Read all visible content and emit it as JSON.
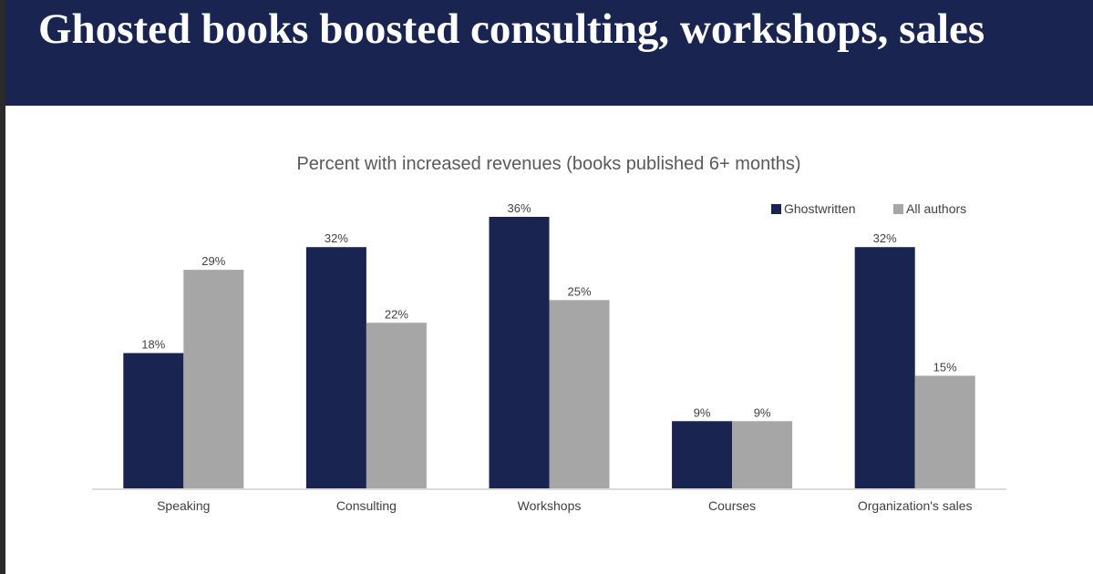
{
  "slide": {
    "title": "Ghosted books boosted consulting, workshops, sales"
  },
  "chart_data": {
    "type": "bar",
    "title": "Percent with increased revenues (books published 6+ months)",
    "xlabel": "",
    "ylabel": "",
    "ylim": [
      0,
      36
    ],
    "grid": false,
    "legend_position": "top-right",
    "categories": [
      "Speaking",
      "Consulting",
      "Workshops",
      "Courses",
      "Organization's sales"
    ],
    "series": [
      {
        "name": "Ghostwritten",
        "color": "#1a2450",
        "values": [
          18,
          32,
          36,
          9,
          32
        ],
        "labels": [
          "18%",
          "32%",
          "36%",
          "9%",
          "32%"
        ]
      },
      {
        "name": "All authors",
        "color": "#a6a6a6",
        "values": [
          29,
          22,
          25,
          9,
          15
        ],
        "labels": [
          "29%",
          "22%",
          "25%",
          "9%",
          "15%"
        ]
      }
    ]
  }
}
